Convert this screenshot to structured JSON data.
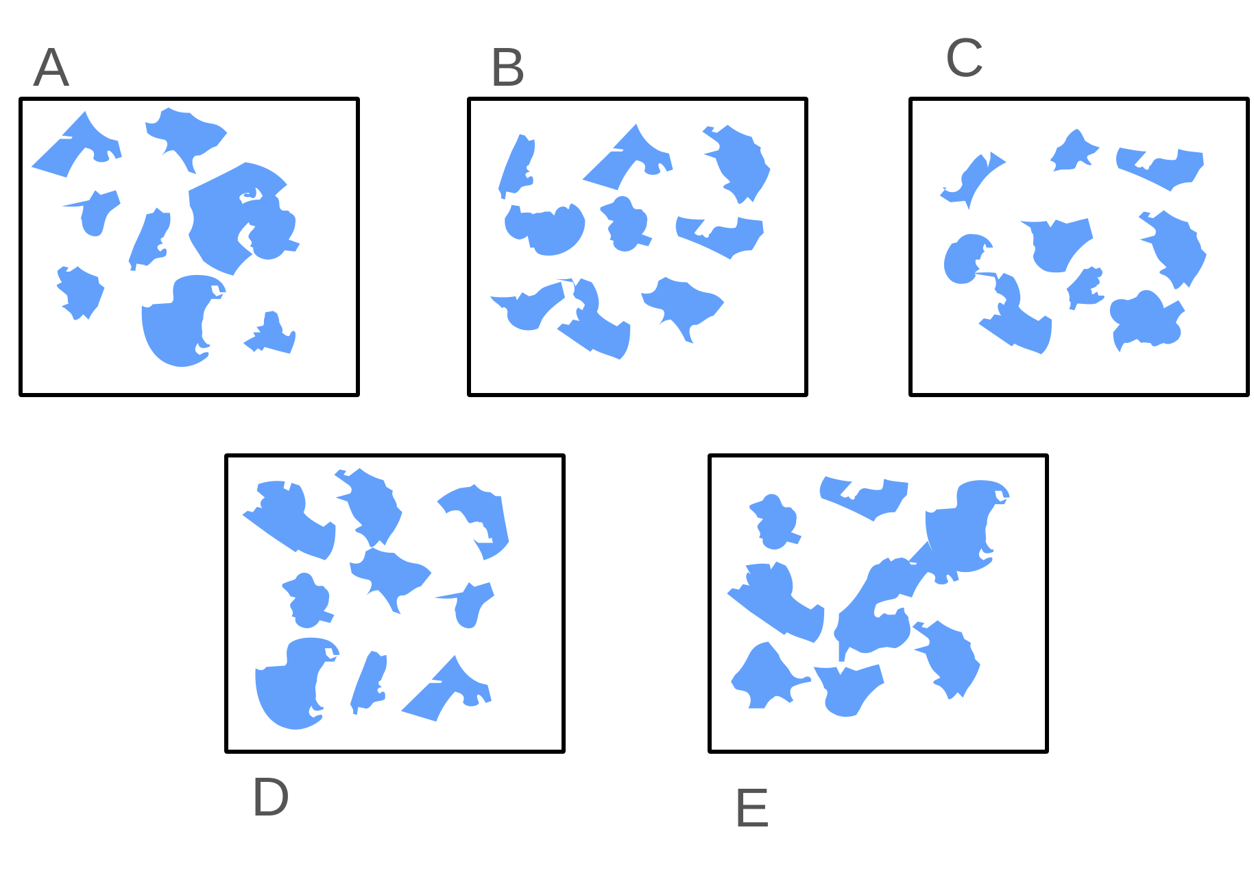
{
  "colors": {
    "piece_fill": "#62a0fc",
    "frame": "#000000",
    "label": "#555555",
    "background": "#ffffff"
  },
  "panels": [
    {
      "label": "A"
    },
    {
      "label": "B"
    },
    {
      "label": "C"
    },
    {
      "label": "D"
    },
    {
      "label": "E"
    }
  ]
}
